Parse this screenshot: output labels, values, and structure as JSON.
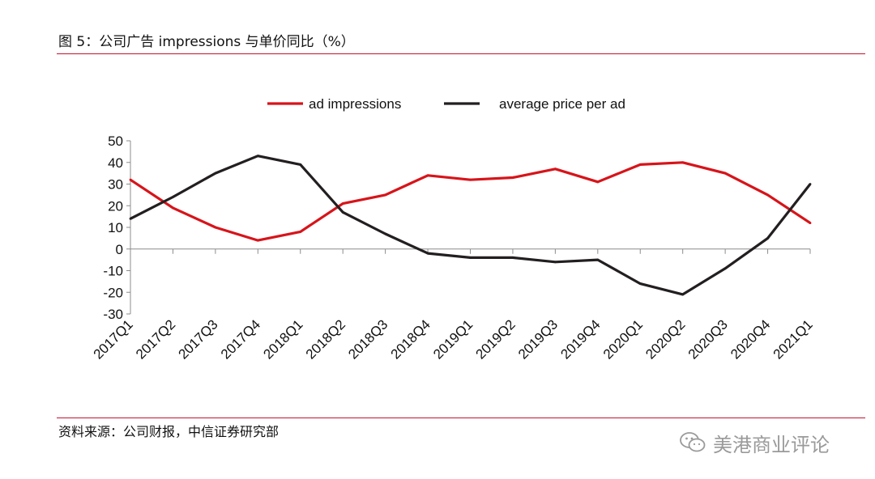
{
  "figure": {
    "title": "图 5：公司广告 impressions 与单价同比（%）",
    "source": "资料来源：公司财报，中信证券研究部",
    "watermark": "美港商业评论",
    "accent_color": "#c8102e"
  },
  "chart_data": {
    "type": "line",
    "title": "",
    "xlabel": "",
    "ylabel": "",
    "ylim": [
      -30,
      50
    ],
    "yticks": [
      50,
      40,
      30,
      20,
      10,
      0,
      -10,
      -20,
      -30
    ],
    "grid": false,
    "legend_position": "top-center",
    "categories": [
      "2017Q1",
      "2017Q2",
      "2017Q3",
      "2017Q4",
      "2018Q1",
      "2018Q2",
      "2018Q3",
      "2018Q4",
      "2019Q1",
      "2019Q2",
      "2019Q3",
      "2019Q4",
      "2020Q1",
      "2020Q2",
      "2020Q3",
      "2020Q4",
      "2021Q1"
    ],
    "series": [
      {
        "name": "ad impressions",
        "color": "#d7141a",
        "values": [
          32,
          19,
          10,
          4,
          8,
          21,
          25,
          34,
          32,
          33,
          37,
          31,
          39,
          40,
          35,
          25,
          12
        ]
      },
      {
        "name": "average price per ad",
        "color": "#231f20",
        "values": [
          14,
          24,
          35,
          43,
          39,
          17,
          7,
          -2,
          -4,
          -4,
          -6,
          -5,
          -16,
          -21,
          -9,
          5,
          30
        ]
      }
    ]
  }
}
